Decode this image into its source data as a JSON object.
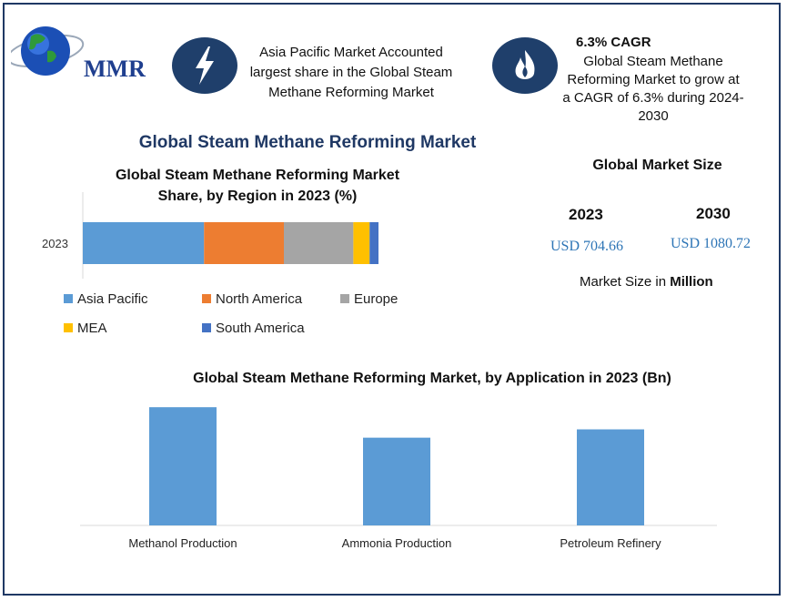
{
  "logo": {
    "text": "MMR"
  },
  "header": {
    "asia_text_line1": "Asia Pacific Market Accounted",
    "asia_text_line2": "largest share in the Global Steam",
    "asia_text_line3": "Methane Reforming Market",
    "cagr_title": "6.3% CAGR",
    "cagr_line1": "Global Steam Methane",
    "cagr_line2": "Reforming Market to grow at",
    "cagr_line3": "a CAGR of 6.3% during 2024-",
    "cagr_line4": "2030"
  },
  "main_title": "Global Steam Methane Reforming Market",
  "market_size": {
    "title": "Global Market Size",
    "year1": "2023",
    "year2": "2030",
    "value1": "USD 704.66",
    "value2": "USD 1080.72",
    "unit_prefix": "Market Size in",
    "unit_bold": "Million"
  },
  "colors": {
    "asia_pacific": "#5b9bd5",
    "north_america": "#ed7d31",
    "europe": "#a5a5a5",
    "mea": "#ffc000",
    "south_america": "#4472c4",
    "icon_bg": "#1f3f6b",
    "title_blue": "#1f3864"
  },
  "chart_data": [
    {
      "type": "bar",
      "orientation": "horizontal-stacked",
      "title_line1": "Global Steam Methane Reforming Market",
      "title_line2": "Share, by Region in 2023 (%)",
      "categories": [
        "2023"
      ],
      "series": [
        {
          "name": "Asia Pacific",
          "values": [
            41
          ]
        },
        {
          "name": "North America",
          "values": [
            27
          ]
        },
        {
          "name": "Europe",
          "values": [
            23.5
          ]
        },
        {
          "name": "MEA",
          "values": [
            5.5
          ]
        },
        {
          "name": "South America",
          "values": [
            3
          ]
        }
      ],
      "xlim": [
        0,
        100
      ],
      "legend": "bottom",
      "grid": false
    },
    {
      "type": "bar",
      "title": "Global Steam Methane Reforming Market, by Application  in 2023 (Bn)",
      "categories": [
        "Methanol Production",
        "Ammonia Production",
        "Petroleum Refinery"
      ],
      "values": [
        128,
        95,
        104
      ],
      "ylim": [
        0,
        140
      ],
      "grid": false
    }
  ]
}
